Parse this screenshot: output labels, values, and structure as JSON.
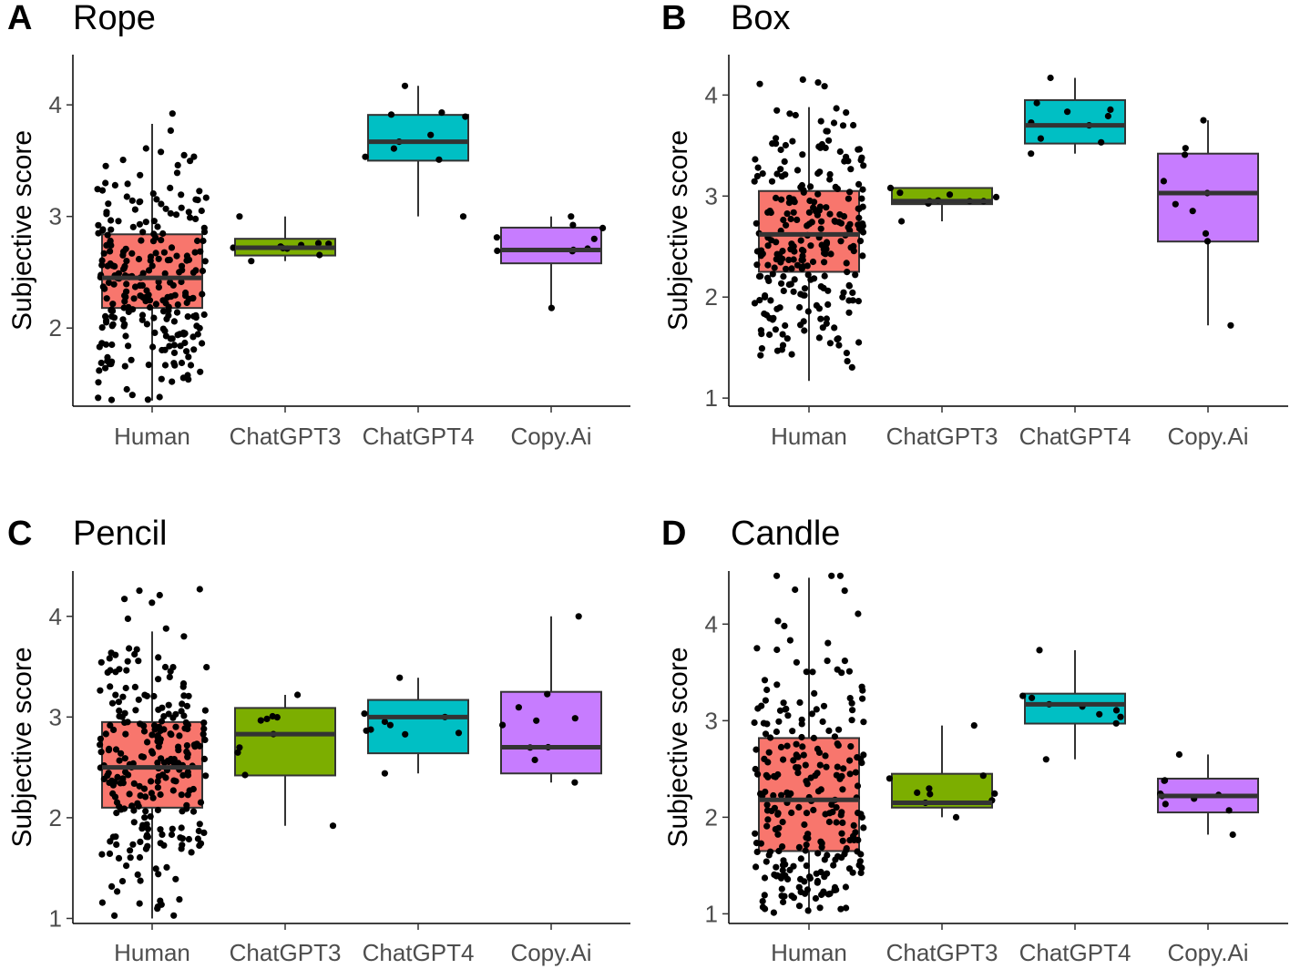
{
  "figure": {
    "groups": [
      "Human",
      "ChatGPT3",
      "ChatGPT4",
      "Copy.Ai"
    ],
    "ylabel": "Subjective score",
    "colors": {
      "Human": "#F8766D",
      "ChatGPT3": "#7CAE00",
      "ChatGPT4": "#00BFC4",
      "Copy.Ai": "#C77CFF"
    }
  },
  "chart_data": [
    {
      "type": "box",
      "panel": "A",
      "title": "Rope",
      "ylabel": "Subjective score",
      "ylim": [
        1.3,
        4.45
      ],
      "yticks": [
        2,
        3,
        4
      ],
      "categories": [
        "Human",
        "ChatGPT3",
        "ChatGPT4",
        "Copy.Ai"
      ],
      "boxes": [
        {
          "q1": 2.18,
          "median": 2.45,
          "q3": 2.84,
          "whisker_low": 1.35,
          "whisker_high": 3.83,
          "n_points": 260
        },
        {
          "q1": 2.65,
          "median": 2.72,
          "q3": 2.8,
          "whisker_low": 2.6,
          "whisker_high": 3.0,
          "n_points": 10
        },
        {
          "q1": 3.5,
          "median": 3.67,
          "q3": 3.91,
          "whisker_low": 3.0,
          "whisker_high": 4.17,
          "n_points": 10
        },
        {
          "q1": 2.58,
          "median": 2.7,
          "q3": 2.9,
          "whisker_low": 2.18,
          "whisker_high": 3.0,
          "n_points": 10
        }
      ]
    },
    {
      "type": "box",
      "panel": "B",
      "title": "Box",
      "ylabel": "Subjective score",
      "ylim": [
        0.92,
        4.4
      ],
      "yticks": [
        1,
        2,
        3,
        4
      ],
      "categories": [
        "Human",
        "ChatGPT3",
        "ChatGPT4",
        "Copy.Ai"
      ],
      "boxes": [
        {
          "q1": 2.25,
          "median": 2.62,
          "q3": 3.05,
          "whisker_low": 1.17,
          "whisker_high": 3.88,
          "n_points": 260
        },
        {
          "q1": 2.92,
          "median": 2.95,
          "q3": 3.08,
          "whisker_low": 2.75,
          "whisker_high": 3.08,
          "n_points": 10
        },
        {
          "q1": 3.52,
          "median": 3.7,
          "q3": 3.95,
          "whisker_low": 3.42,
          "whisker_high": 4.17,
          "n_points": 10
        },
        {
          "q1": 2.55,
          "median": 3.03,
          "q3": 3.42,
          "whisker_low": 1.72,
          "whisker_high": 3.75,
          "n_points": 10
        }
      ]
    },
    {
      "type": "box",
      "panel": "C",
      "title": "Pencil",
      "ylabel": "Subjective score",
      "ylim": [
        0.95,
        4.45
      ],
      "yticks": [
        1,
        2,
        3,
        4
      ],
      "categories": [
        "Human",
        "ChatGPT3",
        "ChatGPT4",
        "Copy.Ai"
      ],
      "boxes": [
        {
          "q1": 2.1,
          "median": 2.5,
          "q3": 2.95,
          "whisker_low": 1.0,
          "whisker_high": 3.85,
          "n_points": 260
        },
        {
          "q1": 2.42,
          "median": 2.83,
          "q3": 3.09,
          "whisker_low": 1.92,
          "whisker_high": 3.22,
          "n_points": 10
        },
        {
          "q1": 2.64,
          "median": 3.0,
          "q3": 3.17,
          "whisker_low": 2.44,
          "whisker_high": 3.39,
          "n_points": 10
        },
        {
          "q1": 2.44,
          "median": 2.7,
          "q3": 3.25,
          "whisker_low": 2.35,
          "whisker_high": 4.0,
          "n_points": 10
        }
      ]
    },
    {
      "type": "box",
      "panel": "D",
      "title": "Candle",
      "ylabel": "Subjective score",
      "ylim": [
        0.9,
        4.55
      ],
      "yticks": [
        1,
        2,
        3,
        4
      ],
      "categories": [
        "Human",
        "ChatGPT3",
        "ChatGPT4",
        "Copy.Ai"
      ],
      "boxes": [
        {
          "q1": 1.65,
          "median": 2.18,
          "q3": 2.82,
          "whisker_low": 1.0,
          "whisker_high": 4.48,
          "n_points": 260
        },
        {
          "q1": 2.1,
          "median": 2.15,
          "q3": 2.45,
          "whisker_low": 2.0,
          "whisker_high": 2.95,
          "n_points": 10
        },
        {
          "q1": 2.97,
          "median": 3.17,
          "q3": 3.28,
          "whisker_low": 2.6,
          "whisker_high": 3.73,
          "n_points": 10
        },
        {
          "q1": 2.05,
          "median": 2.22,
          "q3": 2.4,
          "whisker_low": 1.82,
          "whisker_high": 2.65,
          "n_points": 10
        }
      ]
    }
  ]
}
